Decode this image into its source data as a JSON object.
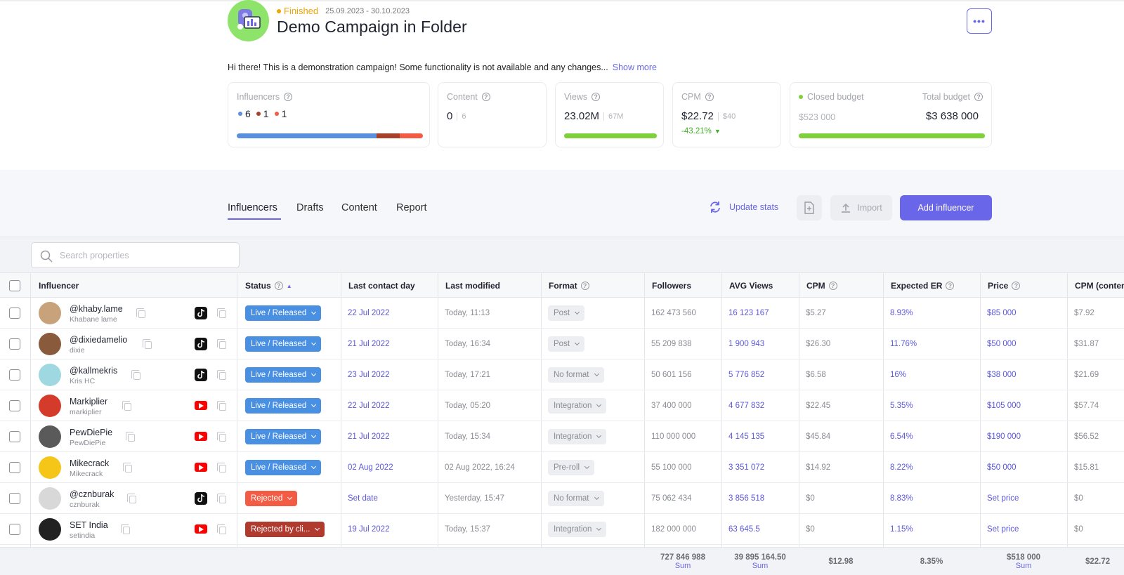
{
  "campaign": {
    "status": "Finished",
    "status_color": "#f0a500",
    "date_range": "25.09.2023 - 30.10.2023",
    "title": "Demo Campaign in Folder",
    "more_label": "•••",
    "description": "Hi there! This is a demonstration campaign! Some functionality is not available and any changes...",
    "show_more": "Show more"
  },
  "stats": {
    "influencers": {
      "label": "Influencers",
      "counts": [
        {
          "value": "6",
          "color": "#5a8fde"
        },
        {
          "value": "1",
          "color": "#a8412c"
        },
        {
          "value": "1",
          "color": "#f25c45"
        }
      ],
      "bar_fractions": [
        0.75,
        0.125,
        0.125
      ]
    },
    "content": {
      "label": "Content",
      "value": "0",
      "sub": "6"
    },
    "views": {
      "label": "Views",
      "value": "23.02M",
      "sub": "67M",
      "progress": 1.0
    },
    "cpm": {
      "label": "CPM",
      "value": "$22.72",
      "sub": "$40",
      "change": "-43.21%",
      "change_color": "#43b02a"
    },
    "budget": {
      "closed_label": "Closed budget",
      "closed_value": "$523 000",
      "total_label": "Total budget",
      "total_value": "$3 638 000",
      "progress": 1.0
    }
  },
  "tabs": [
    "Influencers",
    "Drafts",
    "Content",
    "Report"
  ],
  "actions": {
    "update_stats": "Update stats",
    "import": "Import",
    "add_influencer": "Add influencer"
  },
  "search": {
    "placeholder": "Search properties"
  },
  "columns": [
    "Influencer",
    "Status",
    "Last contact day",
    "Last modified",
    "Format",
    "Followers",
    "AVG Views",
    "CPM",
    "Expected ER",
    "Price",
    "CPM (content)"
  ],
  "rows": [
    {
      "name": "@khaby.lame",
      "handle": "Khabane lame",
      "platform": "tiktok",
      "status": "Live / Released",
      "status_color": "#4a90e2",
      "contact": "22 Jul 2022",
      "modified": "Today, 11:13",
      "format": "Post",
      "followers": "162 473 560",
      "avg_views": "16 123 167",
      "cpm": "$5.27",
      "er": "8.93%",
      "price": "$85 000",
      "cpm_content": "$7.92"
    },
    {
      "name": "@dixiedamelio",
      "handle": "dixie",
      "platform": "tiktok",
      "status": "Live / Released",
      "status_color": "#4a90e2",
      "contact": "21 Jul 2022",
      "modified": "Today, 16:34",
      "format": "Post",
      "followers": "55 209 838",
      "avg_views": "1 900 943",
      "cpm": "$26.30",
      "er": "11.76%",
      "price": "$50 000",
      "cpm_content": "$31.87"
    },
    {
      "name": "@kallmekris",
      "handle": "Kris HC",
      "platform": "tiktok",
      "status": "Live / Released",
      "status_color": "#4a90e2",
      "contact": "23 Jul 2022",
      "modified": "Today, 17:21",
      "format": "No format",
      "followers": "50 601 156",
      "avg_views": "5 776 852",
      "cpm": "$6.58",
      "er": "16%",
      "price": "$38 000",
      "cpm_content": "$21.69"
    },
    {
      "name": "Markiplier",
      "handle": "markiplier",
      "platform": "youtube",
      "status": "Live / Released",
      "status_color": "#4a90e2",
      "contact": "22 Jul 2022",
      "modified": "Today, 05:20",
      "format": "Integration",
      "followers": "37 400 000",
      "avg_views": "4 677 832",
      "cpm": "$22.45",
      "er": "5.35%",
      "price": "$105 000",
      "cpm_content": "$57.74"
    },
    {
      "name": "PewDiePie",
      "handle": "PewDiePie",
      "platform": "youtube",
      "status": "Live / Released",
      "status_color": "#4a90e2",
      "contact": "21 Jul 2022",
      "modified": "Today, 15:34",
      "format": "Integration",
      "followers": "110 000 000",
      "avg_views": "4 145 135",
      "cpm": "$45.84",
      "er": "6.54%",
      "price": "$190 000",
      "cpm_content": "$56.52"
    },
    {
      "name": "Mikecrack",
      "handle": "Mikecrack",
      "platform": "youtube",
      "status": "Live / Released",
      "status_color": "#4a90e2",
      "contact": "02 Aug 2022",
      "modified": "02 Aug 2022, 16:24",
      "format": "Pre-roll",
      "followers": "55 100 000",
      "avg_views": "3 351 072",
      "cpm": "$14.92",
      "er": "8.22%",
      "price": "$50 000",
      "cpm_content": "$15.81"
    },
    {
      "name": "@cznburak",
      "handle": "cznburak",
      "platform": "tiktok",
      "status": "Rejected",
      "status_color": "#f25c45",
      "contact": "Set date",
      "modified": "Yesterday, 15:47",
      "format": "No format",
      "followers": "75 062 434",
      "avg_views": "3 856 518",
      "cpm": "$0",
      "er": "8.83%",
      "price": "Set price",
      "cpm_content": "$0"
    },
    {
      "name": "SET India",
      "handle": "setindia",
      "platform": "youtube",
      "status": "Rejected by cli...",
      "status_color": "#b03a2e",
      "contact": "19 Jul 2022",
      "modified": "Today, 15:37",
      "format": "Integration",
      "followers": "182 000 000",
      "avg_views": "63 645.5",
      "cpm": "$0",
      "er": "1.15%",
      "price": "Set price",
      "cpm_content": "$0"
    }
  ],
  "footer": {
    "followers": "727 846 988",
    "followers_sub": "Sum",
    "avg_views": "39 895 164.50",
    "avg_views_sub": "Sum",
    "cpm": "$12.98",
    "er": "8.35%",
    "price": "$518 000",
    "price_sub": "Sum",
    "cpm_content": "$22.72"
  },
  "colors": {
    "accent": "#6a66e9",
    "live": "#4a90e2",
    "rejected": "#f25c45",
    "rejected_client": "#b03a2e",
    "progress_green": "#7ed13a"
  }
}
